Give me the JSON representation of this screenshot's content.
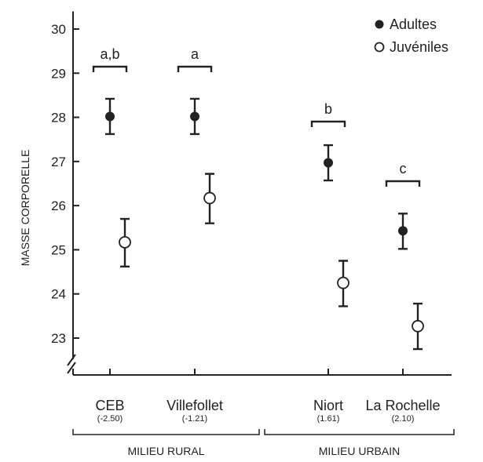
{
  "chart_data": {
    "type": "scatter",
    "ylabel": "MASSE CORPORELLE",
    "xlabel": "",
    "ylim": [
      22.2,
      30.4
    ],
    "y_axis_break": true,
    "y_ticks": [
      23,
      24,
      25,
      26,
      27,
      28,
      29,
      30
    ],
    "categories": [
      {
        "name": "CEB",
        "sub": "(-2.50)",
        "group": "MILIEU RURAL"
      },
      {
        "name": "Villefollet",
        "sub": "(-1.21)",
        "group": "MILIEU RURAL"
      },
      {
        "name": "Niort",
        "sub": "(1.61)",
        "group": "MILIEU URBAIN"
      },
      {
        "name": "La Rochelle",
        "sub": "(2.10)",
        "group": "MILIEU URBAIN"
      }
    ],
    "groups": [
      {
        "label": "MILIEU RURAL",
        "categories": [
          "CEB",
          "Villefollet"
        ]
      },
      {
        "label": "MILIEU URBAIN",
        "categories": [
          "Niort",
          "La Rochelle"
        ]
      }
    ],
    "series": [
      {
        "name": "Adultes",
        "marker": "filled-circle",
        "color": "#222222",
        "values": [
          28.02,
          28.02,
          26.97,
          25.43
        ],
        "err_low": [
          27.62,
          27.62,
          26.57,
          25.02
        ],
        "err_high": [
          28.42,
          28.42,
          27.37,
          25.82
        ]
      },
      {
        "name": "Juvéniles",
        "marker": "open-circle",
        "color": "#222222",
        "values": [
          25.17,
          26.17,
          24.25,
          23.27
        ],
        "err_low": [
          24.62,
          25.6,
          23.72,
          22.75
        ],
        "err_high": [
          25.7,
          26.72,
          24.75,
          23.78
        ]
      }
    ],
    "significance_letters": [
      "a,b",
      "a",
      "b",
      "c"
    ],
    "legend": {
      "position": "top-right",
      "entries": [
        "Adultes",
        "Juvéniles"
      ]
    },
    "grid": false
  }
}
